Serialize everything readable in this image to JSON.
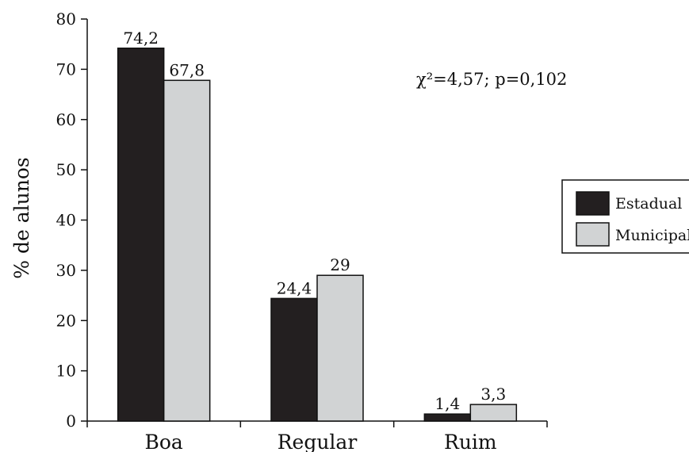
{
  "chart_data": {
    "type": "bar",
    "categories": [
      "Boa",
      "Regular",
      "Ruim"
    ],
    "series": [
      {
        "name": "Estadual",
        "values": [
          74.2,
          24.4,
          1.4
        ],
        "labels": [
          "74,2",
          "24,4",
          "1,4"
        ],
        "color": "#231f20"
      },
      {
        "name": "Municipal",
        "values": [
          67.8,
          29,
          3.3
        ],
        "labels": [
          "67,8",
          "29",
          "3,3"
        ],
        "color": "#d1d3d4"
      }
    ],
    "ylabel": "% de alunos",
    "ylim": [
      0,
      80
    ],
    "yticks": [
      0,
      10,
      20,
      30,
      40,
      50,
      60,
      70,
      80
    ],
    "annotation": "χ²=4,57; p=0,102",
    "legend_placement": "right",
    "grid": false
  }
}
